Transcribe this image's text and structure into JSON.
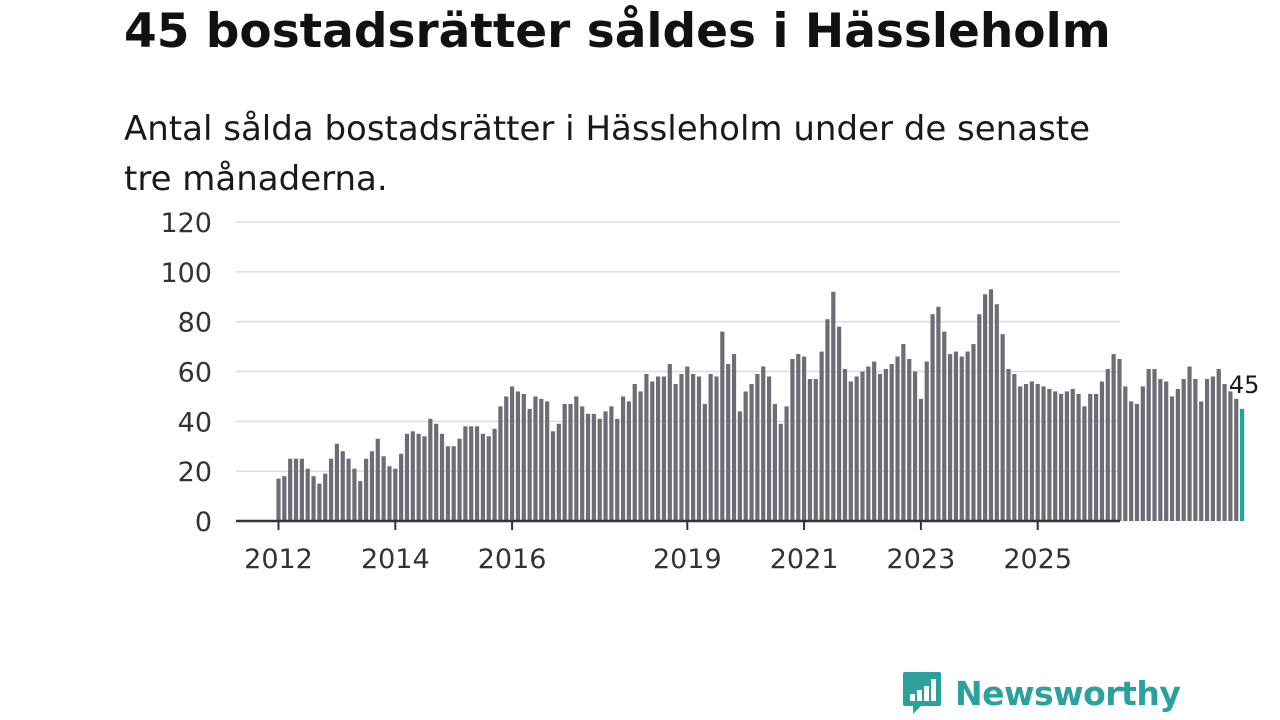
{
  "header": {
    "title": "45 bostadsrätter såldes i Hässleholm",
    "subtitle": "Antal sålda bostadsrätter i Hässleholm under de senaste tre månaderna."
  },
  "brand": {
    "name": "Newsworthy",
    "icon": "newsworthy-logo-icon"
  },
  "colors": {
    "bar": "#6e6d75",
    "highlight": "#22a39e",
    "grid": "#dddddd",
    "axis": "#333333",
    "brand": "#2aa19c"
  },
  "chart_data": {
    "type": "bar",
    "title": "45 bostadsrätter såldes i Hässleholm",
    "xlabel": "",
    "ylabel": "",
    "ylim": [
      0,
      120
    ],
    "yticks": [
      "0",
      "20",
      "40",
      "60",
      "80",
      "100",
      "120"
    ],
    "xticks": [
      {
        "label": "2012",
        "index": 0
      },
      {
        "label": "2014",
        "index": 20
      },
      {
        "label": "2016",
        "index": 40
      },
      {
        "label": "2019",
        "index": 70
      },
      {
        "label": "2021",
        "index": 90
      },
      {
        "label": "2023",
        "index": 110
      },
      {
        "label": "2025",
        "index": 130
      }
    ],
    "grid": true,
    "last_value_label": "45",
    "values": [
      17,
      18,
      25,
      25,
      25,
      21,
      18,
      15,
      19,
      25,
      31,
      28,
      25,
      21,
      16,
      25,
      28,
      33,
      26,
      22,
      21,
      27,
      35,
      36,
      35,
      34,
      41,
      39,
      35,
      30,
      30,
      33,
      38,
      38,
      38,
      35,
      34,
      37,
      46,
      50,
      54,
      52,
      51,
      45,
      50,
      49,
      48,
      36,
      39,
      47,
      47,
      50,
      46,
      43,
      43,
      41,
      44,
      46,
      41,
      50,
      48,
      55,
      52,
      59,
      56,
      58,
      58,
      63,
      55,
      59,
      62,
      59,
      58,
      47,
      59,
      58,
      76,
      63,
      67,
      44,
      52,
      55,
      59,
      62,
      58,
      47,
      39,
      46,
      65,
      67,
      66,
      57,
      57,
      68,
      81,
      92,
      78,
      61,
      56,
      58,
      60,
      62,
      64,
      59,
      61,
      63,
      66,
      71,
      65,
      60,
      49,
      64,
      83,
      86,
      76,
      67,
      68,
      66,
      68,
      71,
      83,
      91,
      93,
      87,
      75,
      61,
      59,
      54,
      55,
      56,
      55,
      54,
      53,
      52,
      51,
      52,
      53,
      51,
      46,
      51,
      51,
      56,
      61,
      67,
      65,
      54,
      48,
      47,
      54,
      61,
      61,
      57,
      56,
      50,
      53,
      57,
      62,
      57,
      48,
      57,
      58,
      61,
      55,
      54,
      49,
      45
    ]
  }
}
